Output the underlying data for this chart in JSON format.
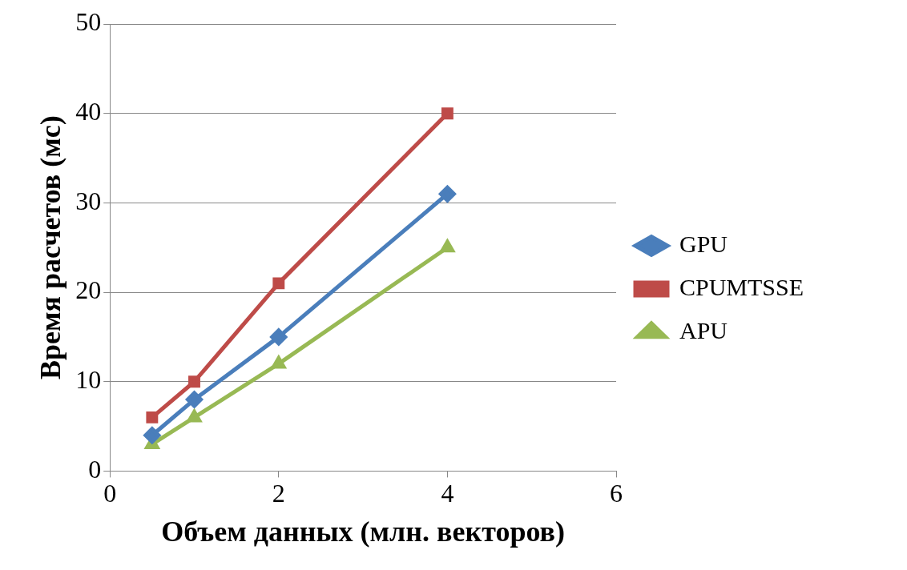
{
  "chart_data": {
    "type": "line",
    "xlabel": "Объем данных (млн. векторов)",
    "ylabel": "Время расчетов (мс)",
    "xlim": [
      0,
      6
    ],
    "xticks": [
      0,
      2,
      4,
      6
    ],
    "ylim": [
      0,
      50
    ],
    "yticks": [
      0,
      10,
      20,
      30,
      40,
      50
    ],
    "grid": "y",
    "legend": "right",
    "line_style": "solid",
    "series": [
      {
        "name": "GPU",
        "color": "#4a7ebb",
        "marker": "diamond",
        "x": [
          0.5,
          1,
          2,
          4
        ],
        "values": [
          4,
          8,
          15,
          31
        ]
      },
      {
        "name": "CPUMTSSE",
        "color": "#be4b48",
        "marker": "square",
        "x": [
          0.5,
          1,
          2,
          4
        ],
        "values": [
          6,
          10,
          21,
          40
        ]
      },
      {
        "name": "APU",
        "color": "#98b954",
        "marker": "triangle",
        "x": [
          0.5,
          1,
          2,
          4
        ],
        "values": [
          3,
          6,
          12,
          25
        ]
      }
    ]
  }
}
